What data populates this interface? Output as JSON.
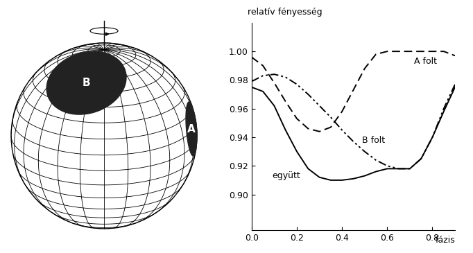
{
  "chart_data": {
    "type": "line",
    "xlabel": "fázis",
    "ylabel": "relatív fényesség",
    "xlim": [
      0.0,
      0.9
    ],
    "ylim": [
      0.875,
      1.02
    ],
    "xticks": [
      0.0,
      0.2,
      0.4,
      0.6,
      0.8
    ],
    "yticks": [
      {
        "value": 0.9,
        "label": "0.90"
      },
      {
        "value": 0.92,
        "label": "0.92"
      },
      {
        "value": 0.94,
        "label": "0.94"
      },
      {
        "value": 0.96,
        "label": "0.96"
      },
      {
        "value": 0.98,
        "label": "0.98"
      },
      {
        "value": 1.0,
        "label": "1.00"
      }
    ],
    "x": [
      0.0,
      0.05,
      0.1,
      0.15,
      0.2,
      0.25,
      0.3,
      0.35,
      0.4,
      0.45,
      0.5,
      0.55,
      0.6,
      0.65,
      0.7,
      0.75,
      0.8,
      0.85,
      0.9
    ],
    "series": [
      {
        "name": "A folt",
        "color": "#000000",
        "line_style": "dashed",
        "values": [
          0.996,
          0.99,
          0.978,
          0.965,
          0.953,
          0.946,
          0.944,
          0.947,
          0.958,
          0.973,
          0.988,
          0.998,
          1.0,
          1.0,
          1.0,
          1.0,
          1.0,
          1.0,
          0.997
        ]
      },
      {
        "name": "B folt",
        "color": "#000000",
        "line_style": "dashdotdot",
        "values": [
          0.979,
          0.983,
          0.984,
          0.982,
          0.977,
          0.97,
          0.962,
          0.954,
          0.945,
          0.937,
          0.93,
          0.924,
          0.92,
          0.918,
          0.918,
          0.925,
          0.94,
          0.96,
          0.977
        ]
      },
      {
        "name": "együtt",
        "color": "#000000",
        "line_style": "solid",
        "values": [
          0.975,
          0.972,
          0.962,
          0.945,
          0.93,
          0.918,
          0.912,
          0.91,
          0.91,
          0.911,
          0.913,
          0.916,
          0.918,
          0.918,
          0.918,
          0.925,
          0.94,
          0.958,
          0.975
        ]
      }
    ]
  },
  "diagram": {
    "spots": [
      {
        "label": "B"
      },
      {
        "label": "A"
      }
    ]
  }
}
